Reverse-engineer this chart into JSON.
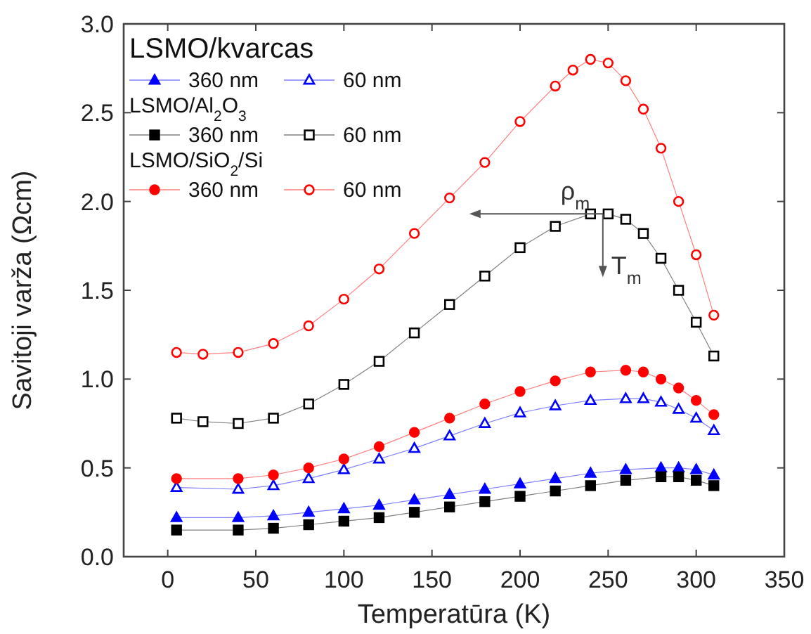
{
  "chart_data": {
    "type": "line",
    "xlabel": "Temperatūra (K)",
    "ylabel": "Savitoji varža (Ωcm)",
    "xlim": [
      -25,
      350
    ],
    "ylim": [
      0,
      3
    ],
    "xticks": [
      0,
      50,
      100,
      150,
      200,
      250,
      300,
      350
    ],
    "yticks": [
      {
        "value": 0,
        "label": "0.0"
      },
      {
        "value": 0.5,
        "label": "0.5"
      },
      {
        "value": 1,
        "label": "1.0"
      },
      {
        "value": 1.5,
        "label": "1.5"
      },
      {
        "value": 2,
        "label": "2.0"
      },
      {
        "value": 2.5,
        "label": "2.5"
      },
      {
        "value": 3,
        "label": "3.0"
      }
    ],
    "grid": false,
    "legend": "top left",
    "annotations": [
      "LSMO/kvarcas",
      "LSMO/Al$_{2}$O$_{3}$",
      "LSMO/SiO$_{2}$/Si",
      {
        "text": "ρ$_{m}$",
        "x": 247,
        "y": 1.93
      },
      {
        "text": "T$_{m}$",
        "x": 247,
        "y": 1.93
      }
    ],
    "series": [
      {
        "name": "360 nm",
        "color": "#0000ff",
        "marker": "triangle",
        "x": [
          5,
          40,
          60,
          80,
          100,
          120,
          140,
          160,
          180,
          200,
          220,
          240,
          260,
          280,
          290,
          300,
          310
        ],
        "values": [
          0.22,
          0.22,
          0.23,
          0.25,
          0.27,
          0.29,
          0.32,
          0.35,
          0.38,
          0.41,
          0.44,
          0.47,
          0.49,
          0.5,
          0.5,
          0.49,
          0.46
        ]
      },
      {
        "name": "60 nm",
        "color": "#0000ff",
        "marker": "triangle",
        "x": [
          5,
          40,
          60,
          80,
          100,
          120,
          140,
          160,
          180,
          200,
          220,
          240,
          260,
          270,
          280,
          290,
          300,
          310
        ],
        "values": [
          0.39,
          0.38,
          0.4,
          0.44,
          0.49,
          0.55,
          0.61,
          0.68,
          0.75,
          0.81,
          0.85,
          0.88,
          0.89,
          0.89,
          0.87,
          0.83,
          0.78,
          0.71
        ]
      },
      {
        "name": "360 nm",
        "color": "#000000",
        "marker": "square",
        "x": [
          5,
          40,
          60,
          80,
          100,
          120,
          140,
          160,
          180,
          200,
          220,
          240,
          260,
          280,
          290,
          300,
          310
        ],
        "values": [
          0.15,
          0.15,
          0.16,
          0.18,
          0.2,
          0.22,
          0.25,
          0.28,
          0.31,
          0.34,
          0.37,
          0.4,
          0.43,
          0.45,
          0.45,
          0.43,
          0.4
        ]
      },
      {
        "name": "60 nm",
        "color": "#000000",
        "marker": "square",
        "x": [
          5,
          20,
          40,
          60,
          80,
          100,
          120,
          140,
          160,
          180,
          200,
          220,
          240,
          250,
          260,
          270,
          280,
          290,
          300,
          310
        ],
        "values": [
          0.78,
          0.76,
          0.75,
          0.78,
          0.86,
          0.97,
          1.1,
          1.26,
          1.42,
          1.58,
          1.74,
          1.86,
          1.93,
          1.93,
          1.9,
          1.82,
          1.68,
          1.5,
          1.32,
          1.13
        ]
      },
      {
        "name": "360 nm",
        "color": "#ff0000",
        "marker": "circle",
        "x": [
          5,
          40,
          60,
          80,
          100,
          120,
          140,
          160,
          180,
          200,
          220,
          240,
          260,
          270,
          280,
          290,
          300,
          310
        ],
        "values": [
          0.44,
          0.44,
          0.46,
          0.5,
          0.55,
          0.62,
          0.7,
          0.78,
          0.86,
          0.93,
          0.99,
          1.04,
          1.05,
          1.04,
          1.0,
          0.95,
          0.88,
          0.8
        ]
      },
      {
        "name": "60 nm",
        "color": "#ff0000",
        "marker": "circle",
        "x": [
          5,
          20,
          40,
          60,
          80,
          100,
          120,
          140,
          160,
          180,
          200,
          220,
          230,
          240,
          250,
          260,
          270,
          280,
          290,
          300,
          310
        ],
        "values": [
          1.15,
          1.14,
          1.15,
          1.2,
          1.3,
          1.45,
          1.62,
          1.82,
          2.02,
          2.22,
          2.45,
          2.65,
          2.74,
          2.8,
          2.78,
          2.68,
          2.52,
          2.3,
          2.0,
          1.7,
          1.36
        ]
      }
    ]
  }
}
